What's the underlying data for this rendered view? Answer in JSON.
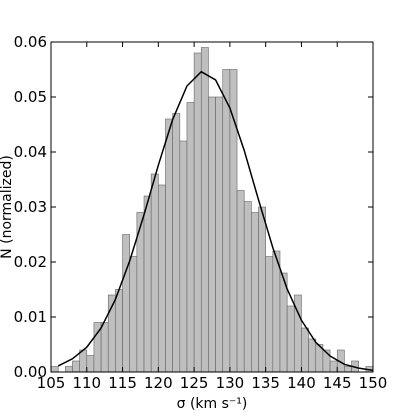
{
  "chart_data": {
    "type": "histogram",
    "xlabel": "σ (km s⁻¹)",
    "ylabel": "N (normalized)",
    "bins": [
      105,
      106,
      107,
      108,
      109,
      110,
      111,
      112,
      113,
      114,
      115,
      116,
      117,
      118,
      119,
      120,
      121,
      122,
      123,
      124,
      125,
      126,
      127,
      128,
      129,
      130,
      131,
      132,
      133,
      134,
      135,
      136,
      137,
      138,
      139,
      140,
      141,
      142,
      143,
      144,
      145,
      146,
      147,
      148,
      149,
      150
    ],
    "values": [
      0.001,
      0,
      0.001,
      0.002,
      0.004,
      0.003,
      0.009,
      0.009,
      0.014,
      0.015,
      0.025,
      0.021,
      0.029,
      0.032,
      0.036,
      0.034,
      0.046,
      0.047,
      0.042,
      0.049,
      0.058,
      0.059,
      0.05,
      0.05,
      0.055,
      0.055,
      0.033,
      0.031,
      0.029,
      0.03,
      0.021,
      0.022,
      0.018,
      0.012,
      0.014,
      0.008,
      0.006,
      0.005,
      0.004,
      0.002,
      0.004,
      0.001,
      0.002,
      0,
      0.001
    ],
    "color": "#bfbfbf",
    "curve": {
      "color": "#000000",
      "x": [
        106,
        108,
        110,
        112,
        114,
        116,
        118,
        120,
        122,
        124,
        126,
        128,
        130,
        132,
        134,
        136,
        138,
        140,
        142,
        144,
        146,
        148,
        150
      ],
      "y": [
        0.0011,
        0.0024,
        0.0045,
        0.008,
        0.0132,
        0.0202,
        0.0286,
        0.0376,
        0.0459,
        0.052,
        0.0546,
        0.0531,
        0.048,
        0.0403,
        0.0313,
        0.0226,
        0.0151,
        0.0094,
        0.0054,
        0.0029,
        0.0014,
        0.0007,
        0.0003
      ]
    },
    "xlim": [
      105,
      150
    ],
    "ylim": [
      0,
      0.06
    ],
    "xticks": [
      105,
      110,
      115,
      120,
      125,
      130,
      135,
      140,
      145,
      150
    ],
    "yticks": [
      {
        "value": 0,
        "label": "0.00"
      },
      {
        "value": 0.01,
        "label": "0.01"
      },
      {
        "value": 0.02,
        "label": "0.02"
      },
      {
        "value": 0.03,
        "label": "0.03"
      },
      {
        "value": 0.04,
        "label": "0.04"
      },
      {
        "value": 0.05,
        "label": "0.05"
      },
      {
        "value": 0.06,
        "label": "0.06"
      }
    ]
  }
}
